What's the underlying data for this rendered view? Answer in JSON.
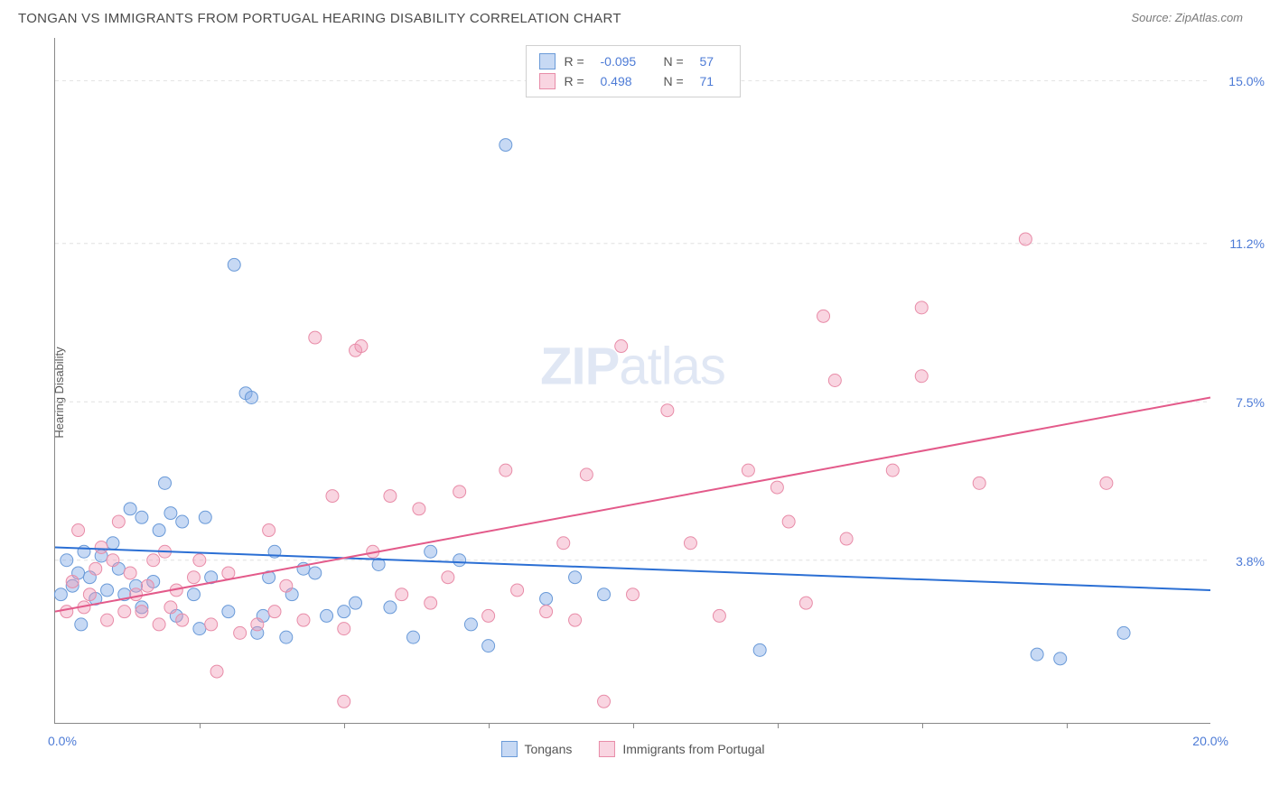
{
  "title": "TONGAN VS IMMIGRANTS FROM PORTUGAL HEARING DISABILITY CORRELATION CHART",
  "source": "Source: ZipAtlas.com",
  "y_axis_label": "Hearing Disability",
  "watermark_zip": "ZIP",
  "watermark_atlas": "atlas",
  "chart": {
    "type": "scatter",
    "xlim": [
      0,
      20
    ],
    "ylim": [
      0,
      16
    ],
    "x_tick_positions": [
      2.5,
      5,
      7.5,
      10,
      12.5,
      15,
      17.5
    ],
    "y_gridlines": [
      {
        "value": 3.8,
        "label": "3.8%"
      },
      {
        "value": 7.5,
        "label": "7.5%"
      },
      {
        "value": 11.2,
        "label": "11.2%"
      },
      {
        "value": 15.0,
        "label": "15.0%"
      }
    ],
    "x_axis_min_label": "0.0%",
    "x_axis_max_label": "20.0%",
    "background_color": "#ffffff",
    "grid_color": "#e0e0e0",
    "axis_color": "#888888",
    "point_radius": 7,
    "series": [
      {
        "name": "Tongans",
        "r_label": "R =",
        "r_value": "-0.095",
        "n_label": "N =",
        "n_value": "57",
        "fill_color": "rgba(130,170,230,0.45)",
        "stroke_color": "#6a9ad8",
        "trend_color": "#2b6fd4",
        "trend_width": 2,
        "trend_line": {
          "x1": 0,
          "y1": 4.1,
          "x2": 20,
          "y2": 3.1
        },
        "points": [
          [
            0.1,
            3.0
          ],
          [
            0.2,
            3.8
          ],
          [
            0.3,
            3.2
          ],
          [
            0.4,
            3.5
          ],
          [
            0.45,
            2.3
          ],
          [
            0.5,
            4.0
          ],
          [
            0.6,
            3.4
          ],
          [
            0.7,
            2.9
          ],
          [
            0.8,
            3.9
          ],
          [
            0.9,
            3.1
          ],
          [
            1.0,
            4.2
          ],
          [
            1.1,
            3.6
          ],
          [
            1.2,
            3.0
          ],
          [
            1.3,
            5.0
          ],
          [
            1.4,
            3.2
          ],
          [
            1.5,
            2.7
          ],
          [
            1.5,
            4.8
          ],
          [
            1.7,
            3.3
          ],
          [
            1.8,
            4.5
          ],
          [
            1.9,
            5.6
          ],
          [
            2.0,
            4.9
          ],
          [
            2.1,
            2.5
          ],
          [
            2.2,
            4.7
          ],
          [
            2.4,
            3.0
          ],
          [
            2.5,
            2.2
          ],
          [
            2.6,
            4.8
          ],
          [
            2.7,
            3.4
          ],
          [
            3.0,
            2.6
          ],
          [
            3.1,
            10.7
          ],
          [
            3.3,
            7.7
          ],
          [
            3.4,
            7.6
          ],
          [
            3.5,
            2.1
          ],
          [
            3.6,
            2.5
          ],
          [
            3.7,
            3.4
          ],
          [
            3.8,
            4.0
          ],
          [
            4.0,
            2.0
          ],
          [
            4.1,
            3.0
          ],
          [
            4.3,
            3.6
          ],
          [
            4.5,
            3.5
          ],
          [
            4.7,
            2.5
          ],
          [
            5.0,
            2.6
          ],
          [
            5.2,
            2.8
          ],
          [
            5.6,
            3.7
          ],
          [
            5.8,
            2.7
          ],
          [
            6.2,
            2.0
          ],
          [
            6.5,
            4.0
          ],
          [
            7.0,
            3.8
          ],
          [
            7.2,
            2.3
          ],
          [
            7.5,
            1.8
          ],
          [
            7.8,
            13.5
          ],
          [
            8.5,
            2.9
          ],
          [
            9.0,
            3.4
          ],
          [
            9.5,
            3.0
          ],
          [
            12.2,
            1.7
          ],
          [
            17.0,
            1.6
          ],
          [
            17.4,
            1.5
          ],
          [
            18.5,
            2.1
          ]
        ]
      },
      {
        "name": "Immigrants from Portugal",
        "r_label": "R =",
        "r_value": "0.498",
        "n_label": "N =",
        "n_value": "71",
        "fill_color": "rgba(240,150,180,0.40)",
        "stroke_color": "#e88ca8",
        "trend_color": "#e35a8a",
        "trend_width": 2,
        "trend_line": {
          "x1": 0,
          "y1": 2.6,
          "x2": 20,
          "y2": 7.6
        },
        "points": [
          [
            0.2,
            2.6
          ],
          [
            0.3,
            3.3
          ],
          [
            0.4,
            4.5
          ],
          [
            0.5,
            2.7
          ],
          [
            0.6,
            3.0
          ],
          [
            0.7,
            3.6
          ],
          [
            0.8,
            4.1
          ],
          [
            0.9,
            2.4
          ],
          [
            1.0,
            3.8
          ],
          [
            1.1,
            4.7
          ],
          [
            1.2,
            2.6
          ],
          [
            1.3,
            3.5
          ],
          [
            1.4,
            3.0
          ],
          [
            1.5,
            2.6
          ],
          [
            1.6,
            3.2
          ],
          [
            1.7,
            3.8
          ],
          [
            1.8,
            2.3
          ],
          [
            1.9,
            4.0
          ],
          [
            2.0,
            2.7
          ],
          [
            2.1,
            3.1
          ],
          [
            2.2,
            2.4
          ],
          [
            2.4,
            3.4
          ],
          [
            2.5,
            3.8
          ],
          [
            2.7,
            2.3
          ],
          [
            2.8,
            1.2
          ],
          [
            3.0,
            3.5
          ],
          [
            3.2,
            2.1
          ],
          [
            3.5,
            2.3
          ],
          [
            3.7,
            4.5
          ],
          [
            3.8,
            2.6
          ],
          [
            4.0,
            3.2
          ],
          [
            4.3,
            2.4
          ],
          [
            4.5,
            9.0
          ],
          [
            4.8,
            5.3
          ],
          [
            5.0,
            2.2
          ],
          [
            5.0,
            0.5
          ],
          [
            5.2,
            8.7
          ],
          [
            5.3,
            8.8
          ],
          [
            5.5,
            4.0
          ],
          [
            5.8,
            5.3
          ],
          [
            6.0,
            3.0
          ],
          [
            6.3,
            5.0
          ],
          [
            6.5,
            2.8
          ],
          [
            6.8,
            3.4
          ],
          [
            7.0,
            5.4
          ],
          [
            7.5,
            2.5
          ],
          [
            7.8,
            5.9
          ],
          [
            8.0,
            3.1
          ],
          [
            8.5,
            2.6
          ],
          [
            8.8,
            4.2
          ],
          [
            9.0,
            2.4
          ],
          [
            9.2,
            5.8
          ],
          [
            9.5,
            0.5
          ],
          [
            9.8,
            8.8
          ],
          [
            10.0,
            3.0
          ],
          [
            10.6,
            7.3
          ],
          [
            11.0,
            4.2
          ],
          [
            11.5,
            2.5
          ],
          [
            12.0,
            5.9
          ],
          [
            12.5,
            5.5
          ],
          [
            12.7,
            4.7
          ],
          [
            13.0,
            2.8
          ],
          [
            13.3,
            9.5
          ],
          [
            13.5,
            8.0
          ],
          [
            13.7,
            4.3
          ],
          [
            14.5,
            5.9
          ],
          [
            15.0,
            9.7
          ],
          [
            15.0,
            8.1
          ],
          [
            16.0,
            5.6
          ],
          [
            16.8,
            11.3
          ],
          [
            18.2,
            5.6
          ]
        ]
      }
    ]
  }
}
